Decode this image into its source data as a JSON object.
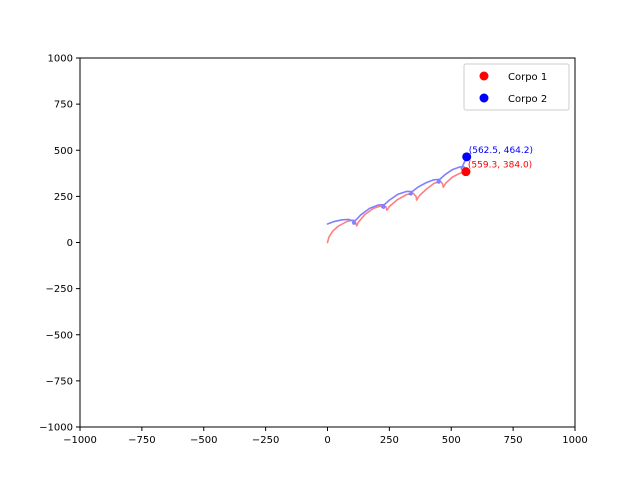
{
  "chart_data": {
    "type": "line",
    "xlim": [
      -1000,
      1000
    ],
    "ylim": [
      -1000,
      1000
    ],
    "x_ticks": [
      -1000,
      -750,
      -500,
      -250,
      0,
      250,
      500,
      750,
      1000
    ],
    "y_ticks": [
      -1000,
      -750,
      -500,
      -250,
      0,
      250,
      500,
      750,
      1000
    ],
    "x_tick_labels": [
      "−1000",
      "−750",
      "−500",
      "−250",
      "0",
      "250",
      "500",
      "750",
      "1000"
    ],
    "y_tick_labels": [
      "−1000",
      "−750",
      "−500",
      "−250",
      "0",
      "250",
      "500",
      "750",
      "1000"
    ],
    "grid": false,
    "legend_position": "top-right",
    "series": [
      {
        "name": "Corpo 1",
        "color": "#ff0000",
        "trail_color": "#ff8080",
        "trajectory": [
          [
            0,
            0
          ],
          [
            6,
            30
          ],
          [
            20,
            60
          ],
          [
            45,
            90
          ],
          [
            80,
            115
          ],
          [
            105,
            122
          ],
          [
            113,
            110
          ],
          [
            118,
            90
          ],
          [
            125,
            110
          ],
          [
            150,
            150
          ],
          [
            185,
            185
          ],
          [
            215,
            198
          ],
          [
            235,
            195
          ],
          [
            240,
            175
          ],
          [
            250,
            195
          ],
          [
            280,
            230
          ],
          [
            320,
            260
          ],
          [
            345,
            268
          ],
          [
            358,
            250
          ],
          [
            360,
            230
          ],
          [
            372,
            255
          ],
          [
            400,
            290
          ],
          [
            430,
            320
          ],
          [
            455,
            332
          ],
          [
            465,
            318
          ],
          [
            468,
            300
          ],
          [
            478,
            322
          ],
          [
            505,
            355
          ],
          [
            535,
            375
          ],
          [
            559.3,
            384.0
          ]
        ],
        "marker": [
          559.3,
          384.0
        ],
        "label": "(559.3, 384.0)"
      },
      {
        "name": "Corpo 2",
        "color": "#0000ff",
        "trail_color": "#8080ff",
        "trajectory": [
          [
            0,
            100
          ],
          [
            30,
            115
          ],
          [
            60,
            123
          ],
          [
            85,
            125
          ],
          [
            100,
            118
          ],
          [
            110,
            110
          ],
          [
            112,
            102
          ],
          [
            104,
            100
          ],
          [
            102,
            108
          ],
          [
            112,
            118
          ],
          [
            135,
            150
          ],
          [
            170,
            185
          ],
          [
            205,
            203
          ],
          [
            225,
            205
          ],
          [
            232,
            195
          ],
          [
            228,
            186
          ],
          [
            220,
            190
          ],
          [
            225,
            200
          ],
          [
            250,
            230
          ],
          [
            285,
            262
          ],
          [
            320,
            277
          ],
          [
            338,
            276
          ],
          [
            343,
            266
          ],
          [
            338,
            258
          ],
          [
            330,
            262
          ],
          [
            336,
            270
          ],
          [
            365,
            300
          ],
          [
            400,
            325
          ],
          [
            430,
            340
          ],
          [
            450,
            342
          ],
          [
            456,
            332
          ],
          [
            450,
            322
          ],
          [
            442,
            327
          ],
          [
            448,
            336
          ],
          [
            475,
            368
          ],
          [
            505,
            395
          ],
          [
            535,
            410
          ],
          [
            552,
            410
          ],
          [
            556,
            398
          ],
          [
            548,
            392
          ],
          [
            540,
            400
          ],
          [
            548,
            420
          ],
          [
            562.5,
            464.2
          ]
        ],
        "marker": [
          562.5,
          464.2
        ],
        "label": "(562.5, 464.2)"
      }
    ]
  }
}
